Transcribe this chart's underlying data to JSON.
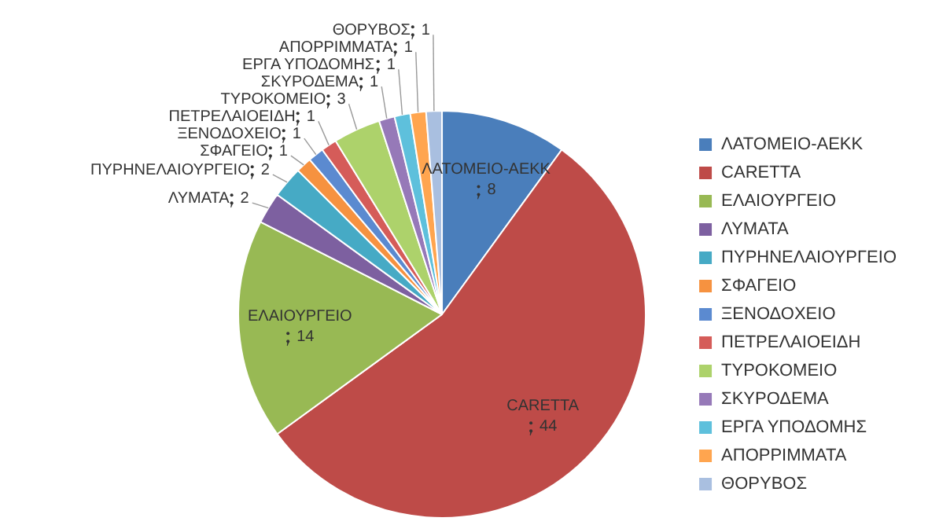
{
  "chart_data": {
    "type": "pie",
    "categories": [
      "ΛΑΤΟΜΕΙΟ-ΑΕΚΚ",
      "CARETTA",
      "ΕΛΑΙΟΥΡΓΕΙΟ",
      "ΛΥΜΑΤΑ",
      "ΠΥΡΗΝΕΛΑΙΟΥΡΓΕΙΟ",
      "ΣΦΑΓΕΙΟ",
      "ΞΕΝΟΔΟΧΕΙΟ",
      "ΠΕΤΡΕΛΑΙΟΕΙΔΗ",
      "ΤΥΡΟΚΟΜΕΙΟ",
      "ΣΚΥΡΟΔΕΜΑ",
      "ΕΡΓΑ ΥΠΟΔΟΜΗΣ",
      "ΑΠΟΡΡΙΜΜΑΤΑ",
      "ΘΟΡΥΒΟΣ"
    ],
    "values": [
      8,
      44,
      14,
      2,
      2,
      1,
      1,
      1,
      3,
      1,
      1,
      1,
      1
    ],
    "colors": [
      "#4a7ebb",
      "#be4b48",
      "#98b954",
      "#7d60a0",
      "#46aac5",
      "#f69240",
      "#5b8ad0",
      "#d55c59",
      "#add26b",
      "#9679b8",
      "#5ec0dc",
      "#ffa54f",
      "#a9bfe0"
    ],
    "data_labels": true,
    "legend": "right"
  }
}
